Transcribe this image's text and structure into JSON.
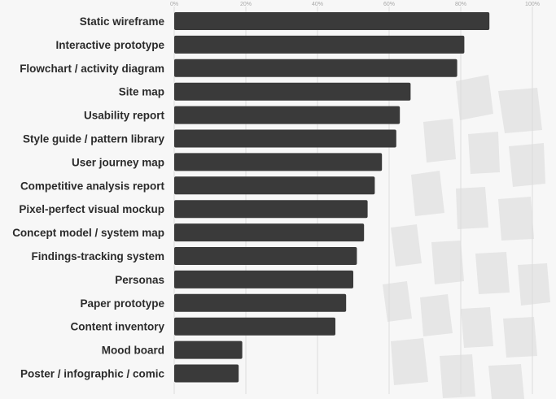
{
  "colors": {
    "background": "#f7f7f7",
    "bar": "#3a3a3a",
    "grid": "#dcdcdc",
    "tick_text": "#a8a8a8",
    "label_text": "#2b2b2b"
  },
  "chart_data": {
    "type": "bar",
    "orientation": "horizontal",
    "title": "",
    "xlabel": "",
    "ylabel": "",
    "xlim": [
      0,
      100
    ],
    "ticks": [
      "0%",
      "20%",
      "40%",
      "60%",
      "80%",
      "100%"
    ],
    "tick_values": [
      0,
      20,
      40,
      60,
      80,
      100
    ],
    "grid": true,
    "categories": [
      "Static wireframe",
      "Interactive prototype",
      "Flowchart / activity diagram",
      "Site map",
      "Usability report",
      "Style guide / pattern library",
      "User journey map",
      "Competitive analysis report",
      "Pixel-perfect visual mockup",
      "Concept model / system map",
      "Findings-tracking system",
      "Personas",
      "Paper prototype",
      "Content inventory",
      "Mood board",
      "Poster / infographic / comic"
    ],
    "values": [
      88,
      81,
      79,
      66,
      63,
      62,
      58,
      56,
      54,
      53,
      51,
      50,
      48,
      45,
      19,
      18
    ]
  }
}
